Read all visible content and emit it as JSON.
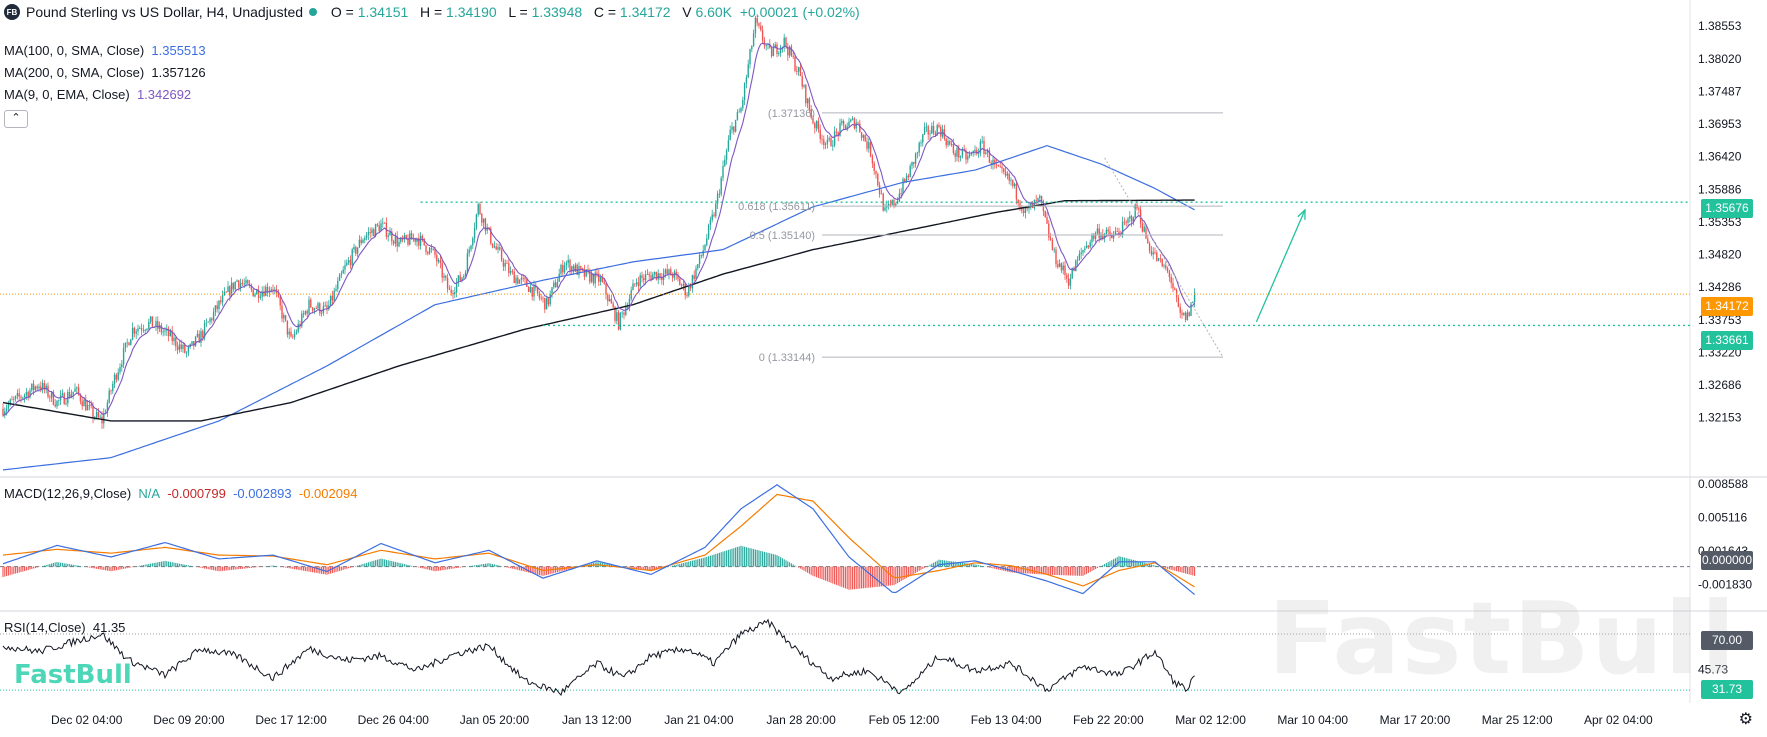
{
  "header": {
    "logo_text": "FB",
    "title": "Pound Sterling vs US Dollar, H4, Unadjusted",
    "o_label": "O =",
    "o_value": "1.34151",
    "h_label": "H =",
    "h_value": "1.34190",
    "l_label": "L =",
    "l_value": "1.33948",
    "c_label": "C =",
    "c_value": "1.34172",
    "v_label": "V",
    "v_value": "6.60K",
    "change": "+0.00021 (+0.02%)"
  },
  "indicators": {
    "ma100_label": "MA(100, 0, SMA, Close)",
    "ma100_value": "1.355513",
    "ma100_color": "#3b6fe0",
    "ma200_label": "MA(200, 0, SMA, Close)",
    "ma200_value": "1.357126",
    "ma200_color": "#131722",
    "ma9_label": "MA(9, 0, EMA, Close)",
    "ma9_value": "1.342692",
    "ma9_color": "#7e57c2",
    "collapse_icon": "chevron-up-icon",
    "collapse_glyph": "⌃"
  },
  "macd": {
    "label": "MACD(12,26,9,Close)",
    "hist_value": "N/A",
    "macd_value": "-0.000799",
    "signal_value": "-0.002893",
    "extra_value": "-0.002094"
  },
  "rsi": {
    "label": "RSI(14,Close)",
    "value": "41.35"
  },
  "watermark": {
    "small": "FastBull",
    "large": "FastBull"
  },
  "settings_icon": "gear-icon",
  "settings_glyph": "⚙",
  "chart_data": {
    "type": "candlestick",
    "title": "Pound Sterling vs US Dollar, H4, Unadjusted",
    "ylim": [
      1.312,
      1.3885
    ],
    "price_ticks": [
      "1.38553",
      "1.38020",
      "1.37487",
      "1.36953",
      "1.36420",
      "1.35886",
      "1.35353",
      "1.34820",
      "1.34286",
      "1.33753",
      "1.33220",
      "1.32686",
      "1.32153"
    ],
    "price_tick_values": [
      1.38553,
      1.3802,
      1.37487,
      1.36953,
      1.3642,
      1.35886,
      1.35353,
      1.3482,
      1.34286,
      1.33753,
      1.3322,
      1.32686,
      1.32153
    ],
    "time_ticks": [
      "Dec 02 04:00",
      "Dec 09 20:00",
      "Dec 17 12:00",
      "Dec 26 04:00",
      "Jan 05 20:00",
      "Jan 13 12:00",
      "Jan 21 04:00",
      "Jan 28 20:00",
      "Feb 05 12:00",
      "Feb 13 04:00",
      "Feb 22 20:00",
      "Mar 02 12:00",
      "Mar 10 04:00",
      "Mar 17 20:00",
      "Mar 25 12:00",
      "Apr 02 04:00"
    ],
    "price_anchors": [
      [
        0,
        1.323
      ],
      [
        10,
        1.325
      ],
      [
        20,
        1.327
      ],
      [
        30,
        1.324
      ],
      [
        40,
        1.326
      ],
      [
        50,
        1.322
      ],
      [
        55,
        1.321
      ],
      [
        62,
        1.328
      ],
      [
        72,
        1.336
      ],
      [
        82,
        1.337
      ],
      [
        92,
        1.335
      ],
      [
        102,
        1.332
      ],
      [
        110,
        1.335
      ],
      [
        120,
        1.34
      ],
      [
        130,
        1.344
      ],
      [
        140,
        1.342
      ],
      [
        150,
        1.343
      ],
      [
        160,
        1.334
      ],
      [
        170,
        1.34
      ],
      [
        180,
        1.339
      ],
      [
        190,
        1.346
      ],
      [
        200,
        1.351
      ],
      [
        210,
        1.353
      ],
      [
        220,
        1.35
      ],
      [
        230,
        1.351
      ],
      [
        240,
        1.348
      ],
      [
        248,
        1.342
      ],
      [
        256,
        1.345
      ],
      [
        264,
        1.356
      ],
      [
        272,
        1.35
      ],
      [
        282,
        1.345
      ],
      [
        292,
        1.343
      ],
      [
        302,
        1.34
      ],
      [
        312,
        1.347
      ],
      [
        322,
        1.345
      ],
      [
        332,
        1.344
      ],
      [
        342,
        1.337
      ],
      [
        352,
        1.344
      ],
      [
        362,
        1.345
      ],
      [
        372,
        1.345
      ],
      [
        380,
        1.342
      ],
      [
        388,
        1.348
      ],
      [
        396,
        1.356
      ],
      [
        404,
        1.368
      ],
      [
        410,
        1.372
      ],
      [
        418,
        1.386
      ],
      [
        426,
        1.381
      ],
      [
        434,
        1.383
      ],
      [
        442,
        1.378
      ],
      [
        450,
        1.37
      ],
      [
        458,
        1.366
      ],
      [
        466,
        1.369
      ],
      [
        474,
        1.37
      ],
      [
        482,
        1.365
      ],
      [
        490,
        1.355
      ],
      [
        496,
        1.357
      ],
      [
        504,
        1.362
      ],
      [
        512,
        1.368
      ],
      [
        520,
        1.369
      ],
      [
        528,
        1.365
      ],
      [
        536,
        1.364
      ],
      [
        544,
        1.366
      ],
      [
        552,
        1.362
      ],
      [
        560,
        1.36
      ],
      [
        568,
        1.355
      ],
      [
        576,
        1.357
      ],
      [
        584,
        1.348
      ],
      [
        592,
        1.344
      ],
      [
        600,
        1.349
      ],
      [
        608,
        1.352
      ],
      [
        616,
        1.351
      ],
      [
        624,
        1.353
      ],
      [
        630,
        1.356
      ],
      [
        636,
        1.35
      ],
      [
        642,
        1.347
      ],
      [
        648,
        1.345
      ],
      [
        654,
        1.338
      ],
      [
        658,
        1.338
      ],
      [
        662,
        1.3417
      ]
    ],
    "series": [
      {
        "name": "MA(100, 0, SMA, Close)",
        "last": 1.355513,
        "anchors": [
          [
            0,
            1.313
          ],
          [
            60,
            1.315
          ],
          [
            120,
            1.321
          ],
          [
            180,
            1.33
          ],
          [
            240,
            1.34
          ],
          [
            300,
            1.344
          ],
          [
            350,
            1.347
          ],
          [
            400,
            1.349
          ],
          [
            450,
            1.356
          ],
          [
            500,
            1.36
          ],
          [
            540,
            1.362
          ],
          [
            580,
            1.366
          ],
          [
            610,
            1.363
          ],
          [
            640,
            1.359
          ],
          [
            662,
            1.3555
          ]
        ]
      },
      {
        "name": "MA(200, 0, SMA, Close)",
        "last": 1.357126,
        "anchors": [
          [
            0,
            1.324
          ],
          [
            60,
            1.321
          ],
          [
            110,
            1.321
          ],
          [
            160,
            1.324
          ],
          [
            220,
            1.33
          ],
          [
            290,
            1.336
          ],
          [
            350,
            1.34
          ],
          [
            400,
            1.345
          ],
          [
            450,
            1.349
          ],
          [
            500,
            1.352
          ],
          [
            550,
            1.355
          ],
          [
            590,
            1.357
          ],
          [
            662,
            1.3571
          ]
        ]
      },
      {
        "name": "MA(9, 0, EMA, Close)",
        "last": 1.342692
      }
    ],
    "levels": [
      {
        "label": "",
        "value": 1.35676,
        "tag": "1.35676",
        "style": "dotted-green"
      },
      {
        "label": "",
        "value": 1.33661,
        "tag": "1.33661",
        "style": "dotted-green"
      },
      {
        "label": "",
        "value": 1.34172,
        "tag": "1.34172",
        "style": "dotted-orange"
      }
    ],
    "fib_levels": [
      {
        "label": "(1.37136)",
        "value": 1.37136
      },
      {
        "label": "0.618 (1.35611)",
        "value": 1.35611
      },
      {
        "label": "0.5 (1.35140)",
        "value": 1.3514
      },
      {
        "label": "0 (1.33144)",
        "value": 1.33144
      }
    ],
    "arrow": {
      "from": [
        663,
        1.3372
      ],
      "to": [
        690,
        1.3555
      ]
    },
    "macd": {
      "ylim": [
        -0.0045,
        0.0092
      ],
      "ticks": [
        "0.008588",
        "0.005116",
        "0.001643",
        "-0.001830"
      ],
      "tick_values": [
        0.008588,
        0.005116,
        0.001643,
        -0.00183
      ],
      "zero_tag": "0.000000",
      "macd_line": [
        [
          0,
          0.0003
        ],
        [
          30,
          0.0022
        ],
        [
          60,
          0.001
        ],
        [
          90,
          0.0025
        ],
        [
          120,
          0.0008
        ],
        [
          150,
          0.0012
        ],
        [
          180,
          -0.0005
        ],
        [
          210,
          0.0024
        ],
        [
          240,
          0.0004
        ],
        [
          270,
          0.0017
        ],
        [
          300,
          -0.0012
        ],
        [
          330,
          0.0006
        ],
        [
          360,
          -0.0008
        ],
        [
          390,
          0.002
        ],
        [
          410,
          0.006
        ],
        [
          430,
          0.0085
        ],
        [
          450,
          0.006
        ],
        [
          470,
          0.001
        ],
        [
          495,
          -0.0028
        ],
        [
          520,
          0.0002
        ],
        [
          540,
          0.0006
        ],
        [
          560,
          -0.0004
        ],
        [
          580,
          -0.0015
        ],
        [
          600,
          -0.0028
        ],
        [
          620,
          0.0005
        ],
        [
          640,
          0.0005
        ],
        [
          662,
          -0.0029
        ]
      ],
      "signal_line": [
        [
          0,
          0.0012
        ],
        [
          30,
          0.0018
        ],
        [
          60,
          0.0014
        ],
        [
          90,
          0.002
        ],
        [
          120,
          0.0012
        ],
        [
          150,
          0.0011
        ],
        [
          180,
          0.0002
        ],
        [
          210,
          0.0017
        ],
        [
          240,
          0.0008
        ],
        [
          270,
          0.0014
        ],
        [
          300,
          -0.0004
        ],
        [
          330,
          0.0002
        ],
        [
          360,
          -0.0004
        ],
        [
          390,
          0.0012
        ],
        [
          410,
          0.0042
        ],
        [
          430,
          0.0075
        ],
        [
          450,
          0.0068
        ],
        [
          470,
          0.003
        ],
        [
          495,
          -0.0012
        ],
        [
          520,
          -0.0004
        ],
        [
          540,
          0.0004
        ],
        [
          560,
          0.0001
        ],
        [
          580,
          -0.0008
        ],
        [
          600,
          -0.002
        ],
        [
          620,
          -0.0004
        ],
        [
          640,
          0.0004
        ],
        [
          662,
          -0.0021
        ]
      ]
    },
    "rsi": {
      "ylim": [
        25,
        85
      ],
      "upper": 70,
      "lower_tag": "31.73",
      "upper_tag": "70.00",
      "mid_tick": "45.73",
      "anchors": [
        [
          0,
          62
        ],
        [
          20,
          58
        ],
        [
          40,
          65
        ],
        [
          55,
          70
        ],
        [
          70,
          52
        ],
        [
          90,
          42
        ],
        [
          110,
          60
        ],
        [
          130,
          55
        ],
        [
          150,
          40
        ],
        [
          170,
          60
        ],
        [
          190,
          52
        ],
        [
          210,
          55
        ],
        [
          230,
          45
        ],
        [
          250,
          56
        ],
        [
          270,
          62
        ],
        [
          290,
          38
        ],
        [
          310,
          30
        ],
        [
          330,
          50
        ],
        [
          345,
          40
        ],
        [
          360,
          55
        ],
        [
          380,
          60
        ],
        [
          395,
          50
        ],
        [
          410,
          70
        ],
        [
          425,
          78
        ],
        [
          440,
          60
        ],
        [
          460,
          40
        ],
        [
          480,
          45
        ],
        [
          500,
          30
        ],
        [
          520,
          55
        ],
        [
          540,
          45
        ],
        [
          560,
          50
        ],
        [
          580,
          32
        ],
        [
          600,
          48
        ],
        [
          620,
          42
        ],
        [
          640,
          58
        ],
        [
          650,
          38
        ],
        [
          658,
          32
        ],
        [
          662,
          41.35
        ]
      ]
    }
  }
}
